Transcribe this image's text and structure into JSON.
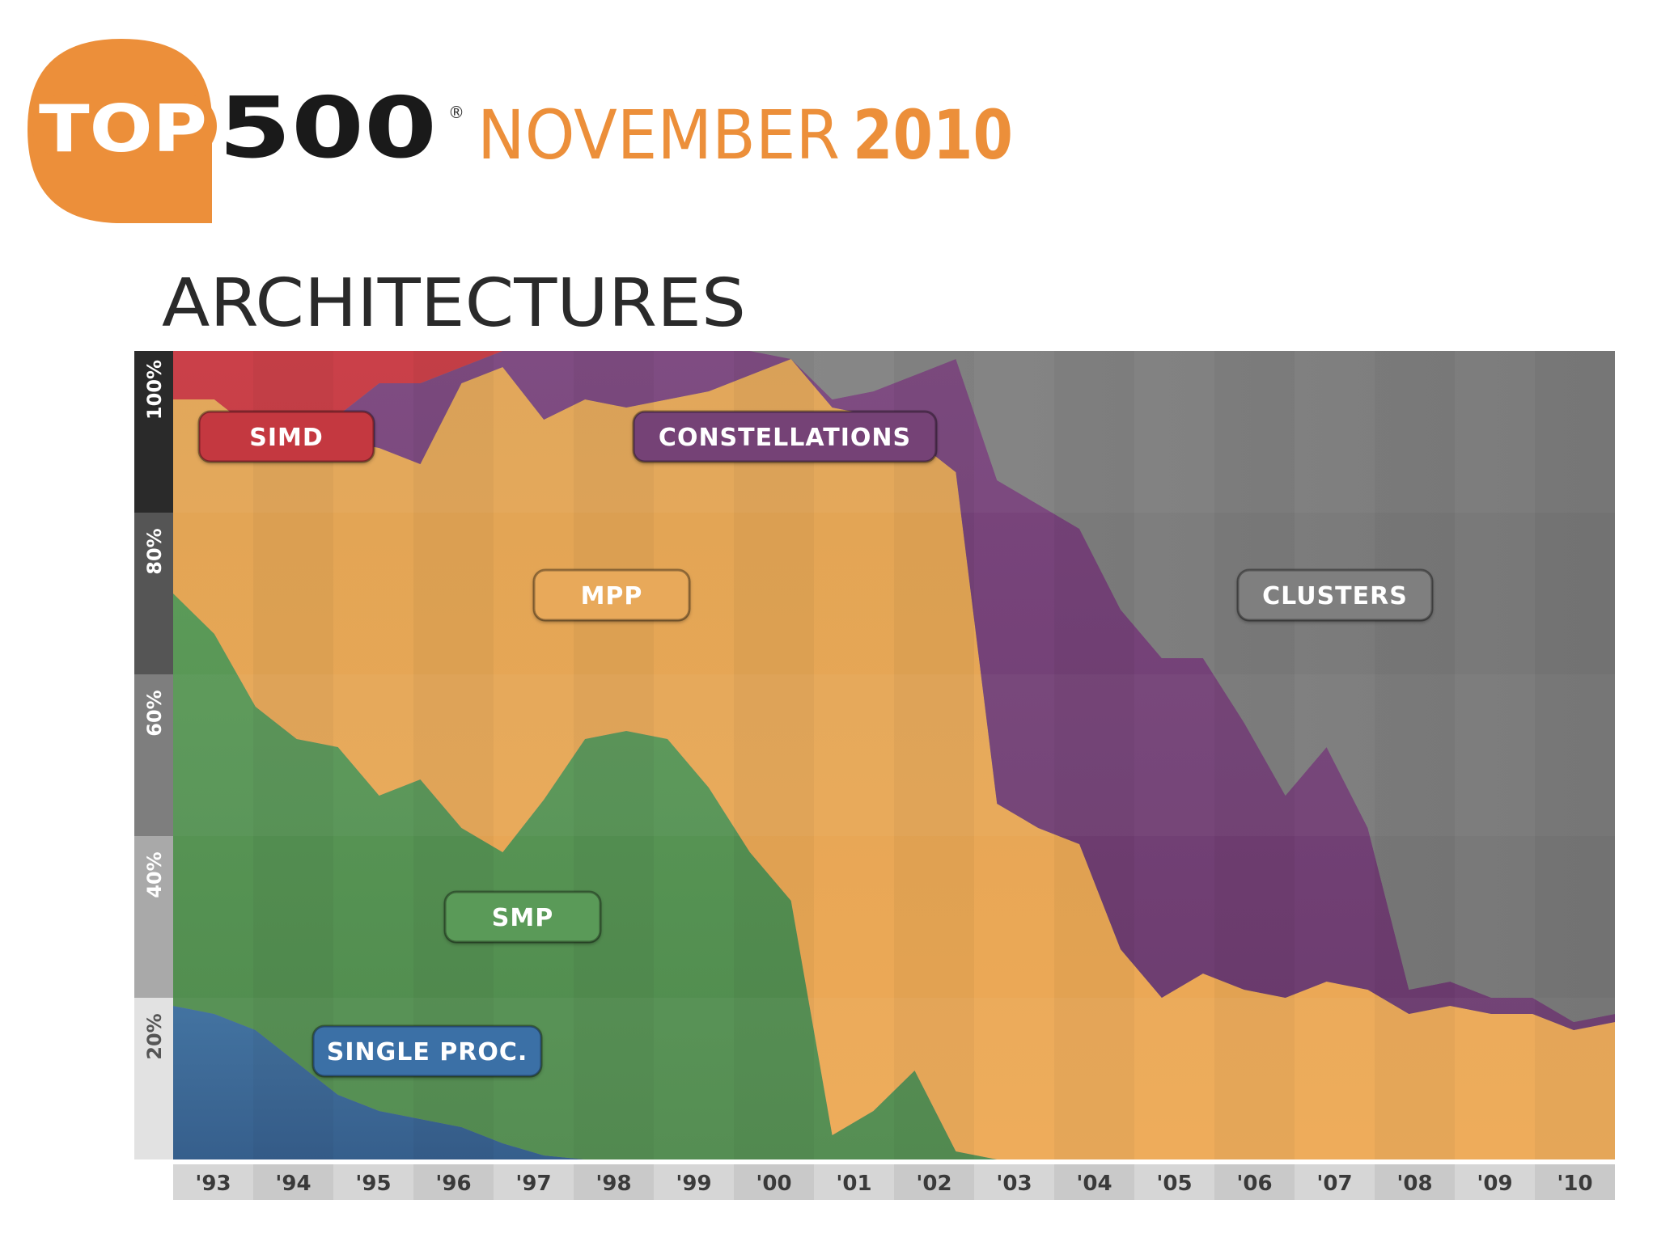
{
  "header": {
    "logo_top": "TOP",
    "logo_500": "500",
    "registered_mark": "®",
    "month": "NOVEMBER",
    "year": "2010"
  },
  "colors": {
    "orange": "#ec8f3a",
    "dark": "#1a1a1a",
    "clusters": "#808080",
    "constellations": "#744276",
    "mpp": "#e3a557",
    "smp": "#589656",
    "single": "#396696",
    "simd": "#c43841"
  },
  "chart_data": {
    "type": "area",
    "stacked": true,
    "title": "ARCHITECTURES",
    "xlabel": "",
    "ylabel": "",
    "ylim": [
      0,
      100
    ],
    "y_ticks": [
      "20%",
      "40%",
      "60%",
      "80%",
      "100%"
    ],
    "categories": [
      "'93",
      "'94",
      "'95",
      "'96",
      "'97",
      "'98",
      "'99",
      "'00",
      "'01",
      "'02",
      "'03",
      "'04",
      "'05",
      "'06",
      "'07",
      "'08",
      "'09",
      "'10"
    ],
    "x": [
      1993.0,
      1993.5,
      1994.0,
      1994.5,
      1995.0,
      1995.5,
      1996.0,
      1996.5,
      1997.0,
      1997.5,
      1998.0,
      1998.5,
      1999.0,
      1999.5,
      2000.0,
      2000.5,
      2001.0,
      2001.5,
      2002.0,
      2002.5,
      2003.0,
      2003.5,
      2004.0,
      2004.5,
      2005.0,
      2005.5,
      2006.0,
      2006.5,
      2007.0,
      2007.5,
      2008.0,
      2008.5,
      2009.0,
      2009.5,
      2010.0,
      2010.5
    ],
    "series": [
      {
        "name": "SINGLE PROC.",
        "key": "single",
        "label_color": "#3b6fa6",
        "values": [
          19,
          18,
          16,
          12,
          8,
          6,
          5,
          4,
          2,
          0.5,
          0,
          0,
          0,
          0,
          0,
          0,
          0,
          0,
          0,
          0,
          0,
          0,
          0,
          0,
          0,
          0,
          0,
          0,
          0,
          0,
          0,
          0,
          0,
          0,
          0,
          0
        ]
      },
      {
        "name": "SMP",
        "key": "smp",
        "label_color": "#5a9a58",
        "values": [
          51,
          47,
          40,
          40,
          43,
          39,
          42,
          37,
          36,
          44,
          52,
          53,
          52,
          46,
          38,
          32,
          3,
          6,
          11,
          1,
          0,
          0,
          0,
          0,
          0,
          0,
          0,
          0,
          0,
          0,
          0,
          0,
          0,
          0,
          0,
          0
        ]
      },
      {
        "name": "MPP",
        "key": "mpp",
        "label_color": "#e8a95a",
        "values": [
          24,
          29,
          34,
          38,
          38,
          43,
          39,
          55,
          60,
          47,
          42,
          40,
          42,
          49,
          59,
          67,
          90,
          86,
          78,
          84,
          44,
          41,
          39,
          26,
          20,
          23,
          21,
          20,
          22,
          21,
          18,
          19,
          18,
          18,
          16,
          17
        ]
      },
      {
        "name": "CONSTELLATIONS",
        "key": "constellations",
        "label_color": "#744276",
        "values": [
          0,
          0,
          0,
          1,
          3,
          8,
          10,
          2,
          2,
          9,
          6,
          7,
          6,
          5,
          3,
          0,
          1,
          3,
          8,
          14,
          40,
          40,
          39,
          42,
          42,
          39,
          33,
          25,
          29,
          20,
          3,
          3,
          2,
          2,
          1,
          1
        ]
      },
      {
        "name": "SIMD",
        "key": "simd",
        "label_color": "#c43841",
        "values": [
          6,
          6,
          10,
          9,
          8,
          4,
          4,
          2,
          0,
          0,
          0,
          0,
          0,
          0,
          0,
          0,
          0,
          0,
          0,
          0,
          0,
          0,
          0,
          0,
          0,
          0,
          0,
          0,
          0,
          0,
          0,
          0,
          0,
          0,
          0,
          0
        ]
      },
      {
        "name": "CLUSTERS",
        "key": "clusters",
        "label_color": "#7f7f7f",
        "values": [
          0,
          0,
          0,
          0,
          0,
          0,
          0,
          0,
          0,
          0,
          0,
          0,
          0,
          0,
          0,
          1,
          6,
          5,
          3,
          1,
          16,
          19,
          22,
          32,
          38,
          38,
          46,
          55,
          49,
          59,
          79,
          78,
          80,
          80,
          83,
          82
        ]
      }
    ]
  }
}
